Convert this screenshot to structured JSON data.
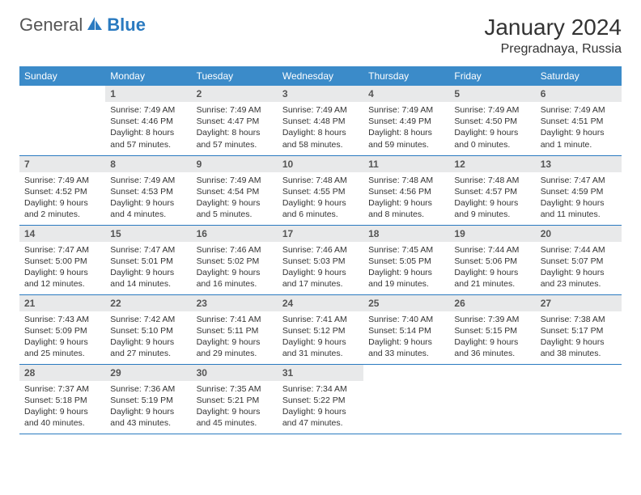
{
  "logo": {
    "general": "General",
    "blue": "Blue"
  },
  "title": "January 2024",
  "location": "Pregradnaya, Russia",
  "colors": {
    "header_bg": "#3b8bc9",
    "header_text": "#ffffff",
    "daynum_bg": "#e8e9ea",
    "daynum_text": "#555555",
    "cell_border": "#2a7ac0",
    "body_text": "#333333",
    "logo_gray": "#555555",
    "logo_blue": "#2a7ac0"
  },
  "dayHeaders": [
    "Sunday",
    "Monday",
    "Tuesday",
    "Wednesday",
    "Thursday",
    "Friday",
    "Saturday"
  ],
  "weeks": [
    [
      {
        "n": "",
        "sr": "",
        "ss": "",
        "dl": ""
      },
      {
        "n": "1",
        "sr": "Sunrise: 7:49 AM",
        "ss": "Sunset: 4:46 PM",
        "dl": "Daylight: 8 hours and 57 minutes."
      },
      {
        "n": "2",
        "sr": "Sunrise: 7:49 AM",
        "ss": "Sunset: 4:47 PM",
        "dl": "Daylight: 8 hours and 57 minutes."
      },
      {
        "n": "3",
        "sr": "Sunrise: 7:49 AM",
        "ss": "Sunset: 4:48 PM",
        "dl": "Daylight: 8 hours and 58 minutes."
      },
      {
        "n": "4",
        "sr": "Sunrise: 7:49 AM",
        "ss": "Sunset: 4:49 PM",
        "dl": "Daylight: 8 hours and 59 minutes."
      },
      {
        "n": "5",
        "sr": "Sunrise: 7:49 AM",
        "ss": "Sunset: 4:50 PM",
        "dl": "Daylight: 9 hours and 0 minutes."
      },
      {
        "n": "6",
        "sr": "Sunrise: 7:49 AM",
        "ss": "Sunset: 4:51 PM",
        "dl": "Daylight: 9 hours and 1 minute."
      }
    ],
    [
      {
        "n": "7",
        "sr": "Sunrise: 7:49 AM",
        "ss": "Sunset: 4:52 PM",
        "dl": "Daylight: 9 hours and 2 minutes."
      },
      {
        "n": "8",
        "sr": "Sunrise: 7:49 AM",
        "ss": "Sunset: 4:53 PM",
        "dl": "Daylight: 9 hours and 4 minutes."
      },
      {
        "n": "9",
        "sr": "Sunrise: 7:49 AM",
        "ss": "Sunset: 4:54 PM",
        "dl": "Daylight: 9 hours and 5 minutes."
      },
      {
        "n": "10",
        "sr": "Sunrise: 7:48 AM",
        "ss": "Sunset: 4:55 PM",
        "dl": "Daylight: 9 hours and 6 minutes."
      },
      {
        "n": "11",
        "sr": "Sunrise: 7:48 AM",
        "ss": "Sunset: 4:56 PM",
        "dl": "Daylight: 9 hours and 8 minutes."
      },
      {
        "n": "12",
        "sr": "Sunrise: 7:48 AM",
        "ss": "Sunset: 4:57 PM",
        "dl": "Daylight: 9 hours and 9 minutes."
      },
      {
        "n": "13",
        "sr": "Sunrise: 7:47 AM",
        "ss": "Sunset: 4:59 PM",
        "dl": "Daylight: 9 hours and 11 minutes."
      }
    ],
    [
      {
        "n": "14",
        "sr": "Sunrise: 7:47 AM",
        "ss": "Sunset: 5:00 PM",
        "dl": "Daylight: 9 hours and 12 minutes."
      },
      {
        "n": "15",
        "sr": "Sunrise: 7:47 AM",
        "ss": "Sunset: 5:01 PM",
        "dl": "Daylight: 9 hours and 14 minutes."
      },
      {
        "n": "16",
        "sr": "Sunrise: 7:46 AM",
        "ss": "Sunset: 5:02 PM",
        "dl": "Daylight: 9 hours and 16 minutes."
      },
      {
        "n": "17",
        "sr": "Sunrise: 7:46 AM",
        "ss": "Sunset: 5:03 PM",
        "dl": "Daylight: 9 hours and 17 minutes."
      },
      {
        "n": "18",
        "sr": "Sunrise: 7:45 AM",
        "ss": "Sunset: 5:05 PM",
        "dl": "Daylight: 9 hours and 19 minutes."
      },
      {
        "n": "19",
        "sr": "Sunrise: 7:44 AM",
        "ss": "Sunset: 5:06 PM",
        "dl": "Daylight: 9 hours and 21 minutes."
      },
      {
        "n": "20",
        "sr": "Sunrise: 7:44 AM",
        "ss": "Sunset: 5:07 PM",
        "dl": "Daylight: 9 hours and 23 minutes."
      }
    ],
    [
      {
        "n": "21",
        "sr": "Sunrise: 7:43 AM",
        "ss": "Sunset: 5:09 PM",
        "dl": "Daylight: 9 hours and 25 minutes."
      },
      {
        "n": "22",
        "sr": "Sunrise: 7:42 AM",
        "ss": "Sunset: 5:10 PM",
        "dl": "Daylight: 9 hours and 27 minutes."
      },
      {
        "n": "23",
        "sr": "Sunrise: 7:41 AM",
        "ss": "Sunset: 5:11 PM",
        "dl": "Daylight: 9 hours and 29 minutes."
      },
      {
        "n": "24",
        "sr": "Sunrise: 7:41 AM",
        "ss": "Sunset: 5:12 PM",
        "dl": "Daylight: 9 hours and 31 minutes."
      },
      {
        "n": "25",
        "sr": "Sunrise: 7:40 AM",
        "ss": "Sunset: 5:14 PM",
        "dl": "Daylight: 9 hours and 33 minutes."
      },
      {
        "n": "26",
        "sr": "Sunrise: 7:39 AM",
        "ss": "Sunset: 5:15 PM",
        "dl": "Daylight: 9 hours and 36 minutes."
      },
      {
        "n": "27",
        "sr": "Sunrise: 7:38 AM",
        "ss": "Sunset: 5:17 PM",
        "dl": "Daylight: 9 hours and 38 minutes."
      }
    ],
    [
      {
        "n": "28",
        "sr": "Sunrise: 7:37 AM",
        "ss": "Sunset: 5:18 PM",
        "dl": "Daylight: 9 hours and 40 minutes."
      },
      {
        "n": "29",
        "sr": "Sunrise: 7:36 AM",
        "ss": "Sunset: 5:19 PM",
        "dl": "Daylight: 9 hours and 43 minutes."
      },
      {
        "n": "30",
        "sr": "Sunrise: 7:35 AM",
        "ss": "Sunset: 5:21 PM",
        "dl": "Daylight: 9 hours and 45 minutes."
      },
      {
        "n": "31",
        "sr": "Sunrise: 7:34 AM",
        "ss": "Sunset: 5:22 PM",
        "dl": "Daylight: 9 hours and 47 minutes."
      },
      {
        "n": "",
        "sr": "",
        "ss": "",
        "dl": ""
      },
      {
        "n": "",
        "sr": "",
        "ss": "",
        "dl": ""
      },
      {
        "n": "",
        "sr": "",
        "ss": "",
        "dl": ""
      }
    ]
  ]
}
